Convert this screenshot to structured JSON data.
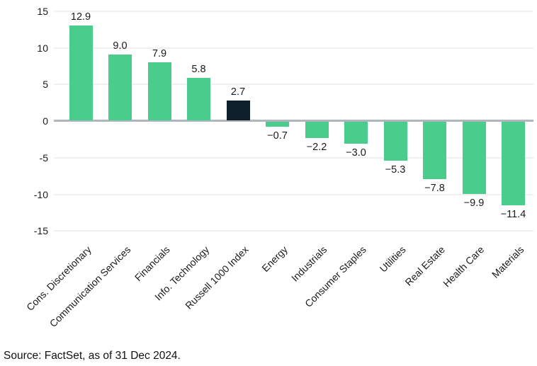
{
  "figure": {
    "source_note": "Source: FactSet, as of 31 Dec 2024."
  },
  "chart_data": {
    "type": "bar",
    "title": "",
    "xlabel": "",
    "ylabel": "",
    "categories": [
      "Cons. Discretionary",
      "Communication Services",
      "Financials",
      "Info. Technology",
      "Russell 1000 Index",
      "Energy",
      "Industrials",
      "Consumer Staples",
      "Utilities",
      "Real Estate",
      "Health Care",
      "Materials"
    ],
    "values": [
      12.9,
      9.0,
      7.9,
      5.8,
      2.7,
      -0.7,
      -2.2,
      -3.0,
      -5.3,
      -7.8,
      -9.9,
      -11.4
    ],
    "value_labels": [
      "12.9",
      "9.0",
      "7.9",
      "5.8",
      "2.7",
      "−0.7",
      "−2.2",
      "−3.0",
      "−5.3",
      "−7.8",
      "−9.9",
      "−11.4"
    ],
    "highlight_index": 4,
    "highlight_category": "Russell 1000 Index",
    "ylim": [
      -15,
      15
    ],
    "yticks": [
      15,
      10,
      5,
      0,
      -5,
      -10,
      -15
    ],
    "ytick_labels": [
      "15",
      "10",
      "5",
      "0",
      "-5",
      "-10",
      "-15"
    ],
    "grid": true,
    "legend_position": "none",
    "colors": {
      "bar_default": "#4ACD8C",
      "bar_highlight": "#0E1F2C",
      "zero_line": "#B0B6BD",
      "gridline": "#F0F0F0",
      "label_text": "#1A1A1A"
    }
  }
}
